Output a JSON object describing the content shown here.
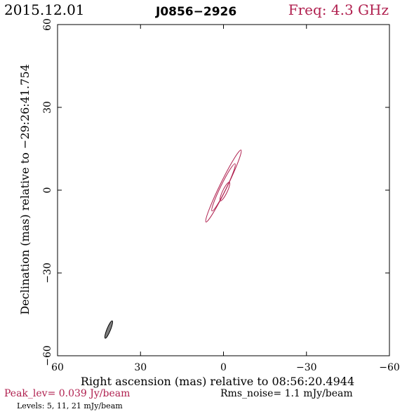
{
  "header": {
    "date": "2015.12.01",
    "source": "J0856−2926",
    "frequency": "Freq: 4.3 GHz"
  },
  "colors": {
    "contour": "#b0204f",
    "beam_fill": "#808080",
    "frame": "#000000"
  },
  "chart_data": {
    "type": "contour",
    "xlabel": "Right ascension (mas) relative to 08:56:20.4944",
    "ylabel": "Declination (mas) relative to −29:26:41.754",
    "xlim": [
      60,
      -60
    ],
    "ylim": [
      -60,
      60
    ],
    "x_ticks": [
      "60",
      "30",
      "0",
      "−30",
      "−60"
    ],
    "y_ticks": [
      "−60",
      "−30",
      "0",
      "30",
      "60"
    ],
    "x_tick_values": [
      60,
      30,
      0,
      -30,
      -60
    ],
    "y_tick_values": [
      -60,
      -30,
      0,
      30,
      60
    ],
    "contours": [
      {
        "level_mJy": 5,
        "center": [
          0,
          1.5
        ],
        "major_mas": 29,
        "minor_mas": 2.6,
        "pa_deg": 26
      },
      {
        "level_mJy": 11,
        "center": [
          0,
          1.0
        ],
        "major_mas": 19,
        "minor_mas": 2.1,
        "pa_deg": 26
      },
      {
        "level_mJy": 21,
        "center": [
          -0.5,
          -0.5
        ],
        "major_mas": 7.5,
        "minor_mas": 1.6,
        "pa_deg": 26
      }
    ],
    "beam": {
      "center": [
        41.5,
        -50.5
      ],
      "major_mas": 6.8,
      "minor_mas": 1.3,
      "pa_deg": 22
    }
  },
  "footer": {
    "peak": "Peak_lev=  0.039 Jy/beam",
    "rms": "Rms_noise=  1.1 mJy/beam",
    "levels": "Levels:   5,  11,  21 mJy/beam"
  }
}
